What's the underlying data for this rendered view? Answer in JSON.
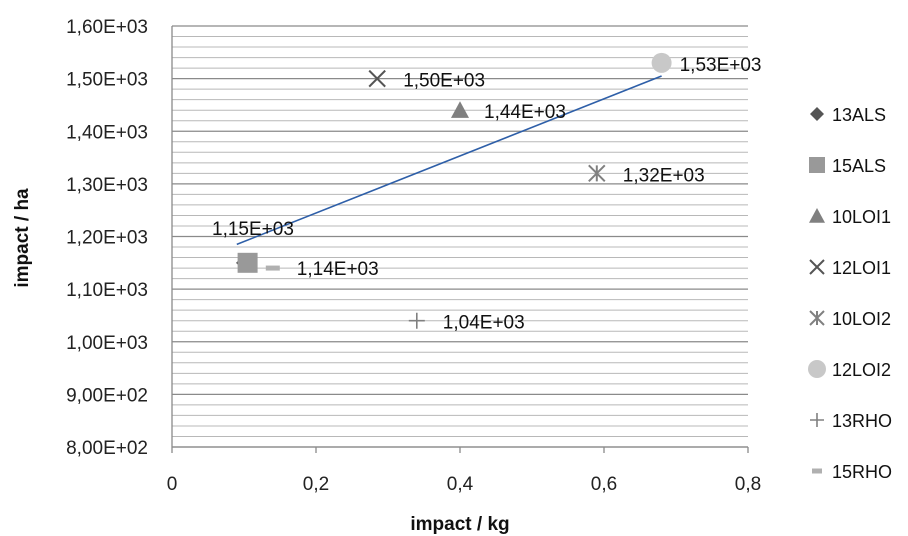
{
  "chart_data": {
    "type": "scatter",
    "title": "",
    "xlabel": "impact / kg",
    "ylabel": "impact / ha",
    "xlim": [
      0,
      0.8
    ],
    "ylim": [
      800,
      1600
    ],
    "x_ticks": [
      0,
      0.2,
      0.4,
      0.6,
      0.8
    ],
    "x_tick_labels": [
      "0",
      "0,2",
      "0,4",
      "0,6",
      "0,8"
    ],
    "y_ticks": [
      800,
      900,
      1000,
      1100,
      1200,
      1300,
      1400,
      1500,
      1600
    ],
    "y_tick_labels": [
      "8,00E+02",
      "9,00E+02",
      "1,00E+03",
      "1,10E+03",
      "1,20E+03",
      "1,30E+03",
      "1,40E+03",
      "1,50E+03",
      "1,60E+03"
    ],
    "grid": true,
    "legend_position": "right",
    "series": [
      {
        "name": "13ALS",
        "marker": "diamond",
        "color": "#555555",
        "x": 0.1,
        "y": 1150,
        "label": "1,15E+03"
      },
      {
        "name": "15ALS",
        "marker": "square",
        "color": "#999999",
        "x": 0.105,
        "y": 1150,
        "label": ""
      },
      {
        "name": "10LOI1",
        "marker": "triangle",
        "color": "#808080",
        "x": 0.4,
        "y": 1440,
        "label": "1,44E+03"
      },
      {
        "name": "12LOI1",
        "marker": "x",
        "color": "#555555",
        "x": 0.285,
        "y": 1500,
        "label": "1,50E+03"
      },
      {
        "name": "10LOI2",
        "marker": "asterisk",
        "color": "#808080",
        "x": 0.59,
        "y": 1320,
        "label": "1,32E+03"
      },
      {
        "name": "12LOI2",
        "marker": "circle",
        "color": "#c8c8c8",
        "x": 0.68,
        "y": 1530,
        "label": "1,53E+03"
      },
      {
        "name": "13RHO",
        "marker": "plus",
        "color": "#808080",
        "x": 0.34,
        "y": 1040,
        "label": "1,04E+03"
      },
      {
        "name": "15RHO",
        "marker": "dash",
        "color": "#b0b0b0",
        "x": 0.14,
        "y": 1140,
        "label": "1,14E+03"
      }
    ],
    "trendline": {
      "color": "#2e5fa8",
      "x": [
        0.09,
        0.68
      ],
      "y": [
        1185,
        1505
      ]
    },
    "minor_gridline_step": 20
  }
}
